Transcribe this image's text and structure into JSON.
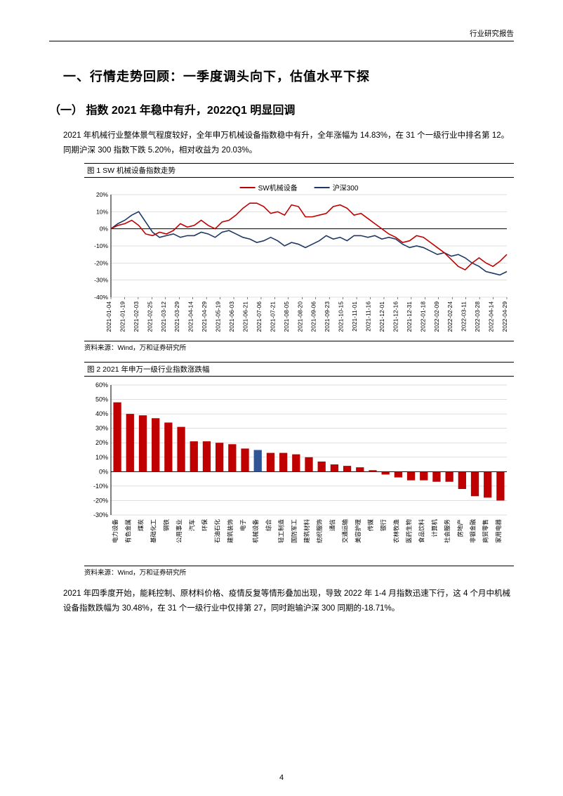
{
  "header": {
    "category": "行业研究报告"
  },
  "h1": "一、行情走势回顾：一季度调头向下，估值水平下探",
  "h2": "（一） 指数 2021 年稳中有升，2022Q1 明显回调",
  "para1": "2021 年机械行业整体景气程度较好，全年申万机械设备指数稳中有升，全年涨幅为 14.83%，在 31 个一级行业中排名第 12。同期沪深 300 指数下跌 5.20%，相对收益为 20.03%。",
  "para2": "2021 年四季度开始，能耗控制、原材料价格、疫情反复等情形叠加出现，导致 2022 年 1-4 月指数迅速下行，这 4 个月中机械设备指数跌幅为 30.48%，在 31 个一级行业中仅排第 27，同时跑输沪深 300 同期的-18.71%。",
  "page_num": "4",
  "colors": {
    "red": "#c00000",
    "navy": "#1f3864",
    "blue_highlight": "#2f5597",
    "axis": "#000000",
    "grid": "#bfbfbf",
    "bg": "#ffffff"
  },
  "chart1": {
    "label": "图 1   SW 机械设备指数走势",
    "source": "资料来源：Wind，万和证券研究所",
    "type": "line",
    "y_ticks": [
      "-40%",
      "-30%",
      "-20%",
      "-10%",
      "0%",
      "10%",
      "20%"
    ],
    "ylim": [
      -40,
      20
    ],
    "x_labels": [
      "2021-01-04",
      "2021-01-19",
      "2021-02-03",
      "2021-02-25",
      "2021-03-12",
      "2021-03-29",
      "2021-04-14",
      "2021-04-29",
      "2021-05-19",
      "2021-06-03",
      "2021-06-21",
      "2021-07-06",
      "2021-07-21",
      "2021-08-05",
      "2021-08-20",
      "2021-09-06",
      "2021-09-23",
      "2021-10-15",
      "2021-11-01",
      "2021-11-16",
      "2021-12-01",
      "2021-12-16",
      "2021-12-31",
      "2022-01-18",
      "2022-02-09",
      "2022-02-24",
      "2022-03-11",
      "2022-03-28",
      "2022-04-14",
      "2022-04-29"
    ],
    "legend": [
      {
        "name": "SW机械设备",
        "color": "#c00000"
      },
      {
        "name": "沪深300",
        "color": "#1f3864"
      }
    ],
    "series_red": [
      0,
      2,
      3,
      5,
      2,
      -3,
      -4,
      -2,
      -3,
      -1,
      3,
      1,
      2,
      5,
      2,
      0,
      4,
      5,
      8,
      12,
      15,
      15,
      13,
      9,
      10,
      8,
      14,
      13,
      7,
      7,
      8,
      9,
      13,
      14,
      12,
      8,
      9,
      6,
      3,
      0,
      -3,
      -5,
      -8,
      -7,
      -4,
      -5,
      -8,
      -11,
      -14,
      -18,
      -22,
      -24,
      -20,
      -17,
      -20,
      -22,
      -19,
      -15
    ],
    "series_navy": [
      0,
      3,
      5,
      8,
      10,
      4,
      -2,
      -5,
      -4,
      -3,
      -5,
      -4,
      -4,
      -2,
      -3,
      -5,
      -2,
      -1,
      -3,
      -5,
      -6,
      -8,
      -7,
      -5,
      -7,
      -10,
      -8,
      -9,
      -11,
      -9,
      -7,
      -4,
      -6,
      -5,
      -7,
      -4,
      -4,
      -5,
      -4,
      -6,
      -5,
      -6,
      -9,
      -11,
      -10,
      -11,
      -13,
      -15,
      -14,
      -16,
      -15,
      -17,
      -20,
      -22,
      -25,
      -26,
      -27,
      -25
    ],
    "label_fontsize": 8.5,
    "tick_fontsize": 8.5,
    "line_width": 1.6
  },
  "chart2": {
    "label": "图 2   2021 年申万一级行业指数涨跌幅",
    "source": "资料来源：Wind，万和证券研究所",
    "type": "bar",
    "y_ticks": [
      "-30%",
      "-20%",
      "-10%",
      "0%",
      "10%",
      "20%",
      "30%",
      "40%",
      "50%",
      "60%"
    ],
    "ylim": [
      -30,
      60
    ],
    "categories": [
      "电力设备",
      "有色金属",
      "煤炭",
      "基础化工",
      "钢铁",
      "公用事业",
      "汽车",
      "环保",
      "石油石化",
      "建筑装饰",
      "电子",
      "机械设备",
      "综合",
      "轻工制造",
      "国防军工",
      "建筑材料",
      "纺织服饰",
      "通信",
      "交通运输",
      "美容护理",
      "传媒",
      "银行",
      "农林牧渔",
      "医药生物",
      "食品饮料",
      "计算机",
      "社会服务",
      "房地产",
      "非银金融",
      "商贸零售",
      "家用电器"
    ],
    "values": [
      48,
      40,
      39,
      37,
      34,
      31,
      21,
      21,
      20,
      19,
      16,
      15,
      13,
      13,
      12,
      10,
      7,
      5,
      4,
      3,
      1,
      -2,
      -4,
      -6,
      -6,
      -7,
      -7,
      -12,
      -17,
      -18,
      -20
    ],
    "highlight_index": 11,
    "bar_color": "#c00000",
    "highlight_color": "#2f5597",
    "label_fontsize": 8.5,
    "tick_fontsize": 9,
    "bar_width": 0.62
  }
}
